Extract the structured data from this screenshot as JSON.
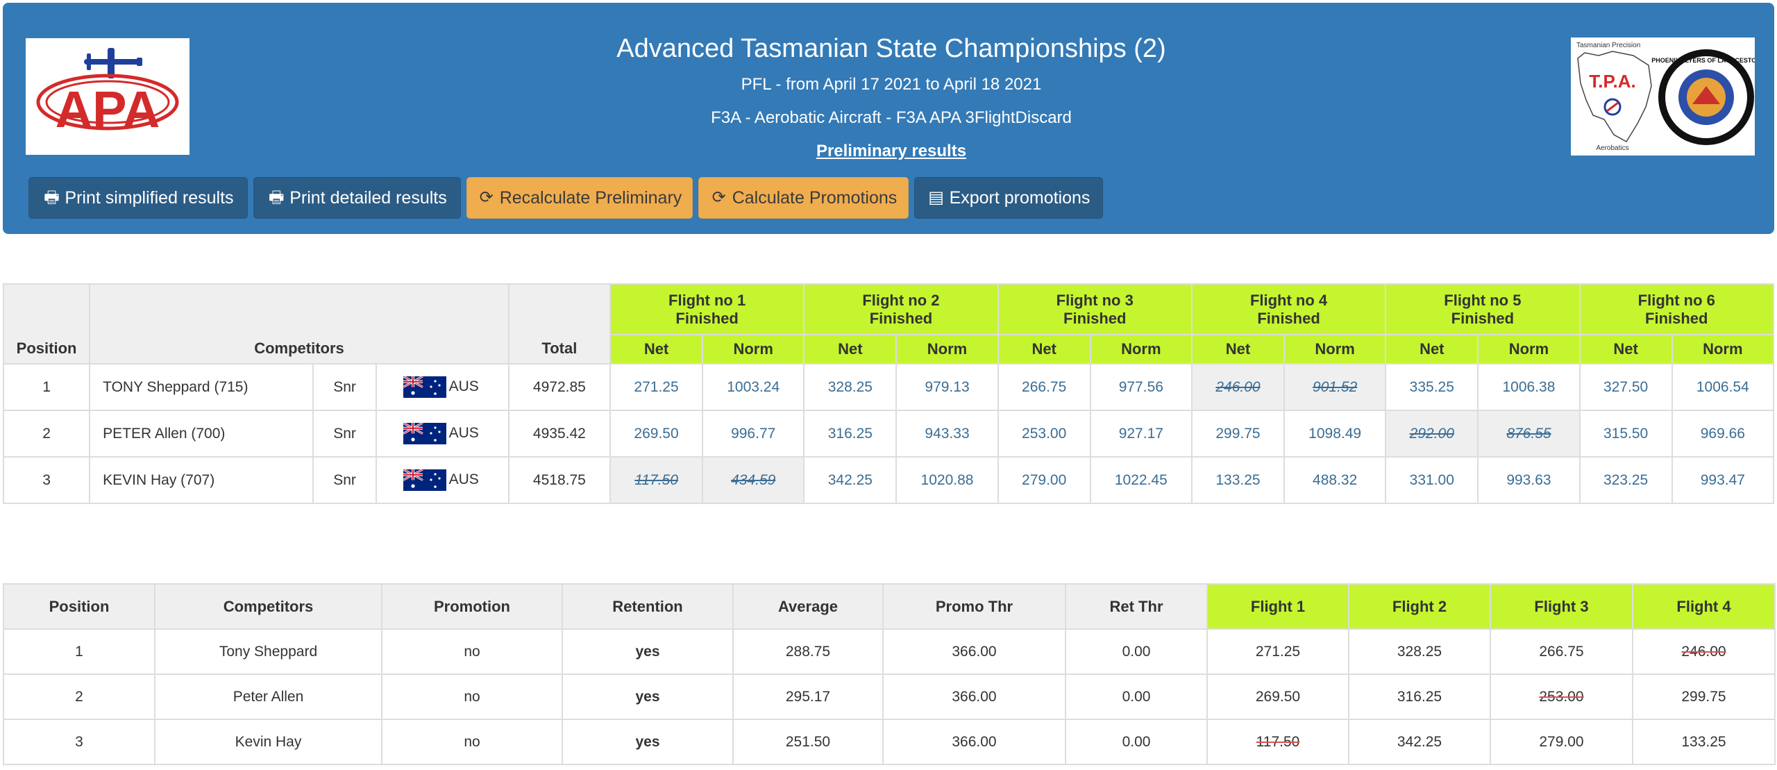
{
  "header": {
    "title": "Advanced Tasmanian State Championships (2)",
    "subtitle": "PFL - from April 17 2021 to April 18 2021",
    "class_line": "F3A - Aerobatic Aircraft - F3A APA 3FlightDiscard",
    "status": "Preliminary results",
    "logo_left_text": "APA",
    "logo_right_text": "T.P.A.",
    "logo_right_caption_top": "Tasmanian Precision",
    "logo_right_caption_bottom": "Aerobatics",
    "logo_badge_text": "PHOENIX FLYERS OF LAUNCESTON"
  },
  "toolbar": {
    "print_simplified": "Print simplified results",
    "print_detailed": "Print detailed results",
    "recalculate": "Recalculate Preliminary",
    "calculate_promotions": "Calculate Promotions",
    "export_promotions": "Export promotions"
  },
  "results": {
    "headers": {
      "position": "Position",
      "competitors": "Competitors",
      "total": "Total",
      "net": "Net",
      "norm": "Norm"
    },
    "flights": [
      {
        "label": "Flight no 1",
        "status": "Finished"
      },
      {
        "label": "Flight no 2",
        "status": "Finished"
      },
      {
        "label": "Flight no 3",
        "status": "Finished"
      },
      {
        "label": "Flight no 4",
        "status": "Finished"
      },
      {
        "label": "Flight no 5",
        "status": "Finished"
      },
      {
        "label": "Flight no 6",
        "status": "Finished"
      }
    ],
    "rows": [
      {
        "position": "1",
        "name": "TONY Sheppard (715)",
        "category": "Snr",
        "country": "AUS",
        "total": "4972.85",
        "scores": [
          {
            "net": "271.25",
            "norm": "1003.24",
            "discarded": false
          },
          {
            "net": "328.25",
            "norm": "979.13",
            "discarded": false
          },
          {
            "net": "266.75",
            "norm": "977.56",
            "discarded": false
          },
          {
            "net": "246.00",
            "norm": "901.52",
            "discarded": true
          },
          {
            "net": "335.25",
            "norm": "1006.38",
            "discarded": false
          },
          {
            "net": "327.50",
            "norm": "1006.54",
            "discarded": false
          }
        ]
      },
      {
        "position": "2",
        "name": "PETER Allen (700)",
        "category": "Snr",
        "country": "AUS",
        "total": "4935.42",
        "scores": [
          {
            "net": "269.50",
            "norm": "996.77",
            "discarded": false
          },
          {
            "net": "316.25",
            "norm": "943.33",
            "discarded": false
          },
          {
            "net": "253.00",
            "norm": "927.17",
            "discarded": false
          },
          {
            "net": "299.75",
            "norm": "1098.49",
            "discarded": false
          },
          {
            "net": "292.00",
            "norm": "876.55",
            "discarded": true
          },
          {
            "net": "315.50",
            "norm": "969.66",
            "discarded": false
          }
        ]
      },
      {
        "position": "3",
        "name": "KEVIN Hay (707)",
        "category": "Snr",
        "country": "AUS",
        "total": "4518.75",
        "scores": [
          {
            "net": "117.50",
            "norm": "434.59",
            "discarded": true
          },
          {
            "net": "342.25",
            "norm": "1020.88",
            "discarded": false
          },
          {
            "net": "279.00",
            "norm": "1022.45",
            "discarded": false
          },
          {
            "net": "133.25",
            "norm": "488.32",
            "discarded": false
          },
          {
            "net": "331.00",
            "norm": "993.63",
            "discarded": false
          },
          {
            "net": "323.25",
            "norm": "993.47",
            "discarded": false
          }
        ]
      }
    ]
  },
  "promotions": {
    "headers": [
      "Position",
      "Competitors",
      "Promotion",
      "Retention",
      "Average",
      "Promo Thr",
      "Ret Thr",
      "Flight 1",
      "Flight 2",
      "Flight 3",
      "Flight 4"
    ],
    "rows": [
      {
        "position": "1",
        "name": "Tony Sheppard",
        "promotion": "no",
        "retention": "yes",
        "average": "288.75",
        "promo_thr": "366.00",
        "ret_thr": "0.00",
        "flights": [
          {
            "v": "271.25",
            "d": false
          },
          {
            "v": "328.25",
            "d": false
          },
          {
            "v": "266.75",
            "d": false
          },
          {
            "v": "246.00",
            "d": true
          }
        ]
      },
      {
        "position": "2",
        "name": "Peter Allen",
        "promotion": "no",
        "retention": "yes",
        "average": "295.17",
        "promo_thr": "366.00",
        "ret_thr": "0.00",
        "flights": [
          {
            "v": "269.50",
            "d": false
          },
          {
            "v": "316.25",
            "d": false
          },
          {
            "v": "253.00",
            "d": true
          },
          {
            "v": "299.75",
            "d": false
          }
        ]
      },
      {
        "position": "3",
        "name": "Kevin Hay",
        "promotion": "no",
        "retention": "yes",
        "average": "251.50",
        "promo_thr": "366.00",
        "ret_thr": "0.00",
        "flights": [
          {
            "v": "117.50",
            "d": true
          },
          {
            "v": "342.25",
            "d": false
          },
          {
            "v": "279.00",
            "d": false
          },
          {
            "v": "133.25",
            "d": false
          }
        ]
      }
    ]
  },
  "colors": {
    "header_bg": "#337ab7",
    "button_dark": "#2b5c86",
    "button_warning": "#f0ad4e",
    "flight_header": "#c5f52e",
    "grey_header": "#efefef",
    "discard_strike": "#d9534f"
  },
  "icons": {
    "print": "print-icon",
    "refresh": "refresh-icon",
    "export": "file-excel-icon"
  }
}
